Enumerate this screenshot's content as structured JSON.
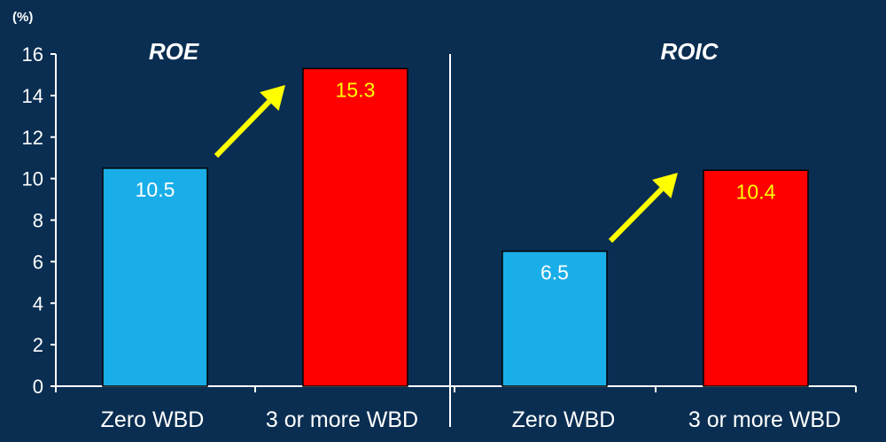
{
  "chart_data": {
    "type": "bar",
    "unit_label": "(%)",
    "ylim": [
      0,
      16
    ],
    "yticks": [
      0,
      2,
      4,
      6,
      8,
      10,
      12,
      14,
      16
    ],
    "ytick_labels": [
      "0",
      "2",
      "4",
      "6",
      "8",
      "10",
      "12",
      "14",
      "16"
    ],
    "grid": false,
    "background": "#0a2e52",
    "panels": [
      {
        "title": "ROE",
        "categories": [
          "Zero WBD",
          "3 or more WBD"
        ],
        "values": [
          10.5,
          15.3
        ],
        "value_labels": [
          "10.5",
          "15.3"
        ],
        "colors": [
          "#1aaee8",
          "#ff0000"
        ],
        "label_colors": [
          "#ffffff",
          "#ffff00"
        ],
        "arrow": {
          "from_category": "Zero WBD",
          "to_category": "3 or more WBD",
          "color": "#ffff00"
        }
      },
      {
        "title": "ROIC",
        "categories": [
          "Zero WBD",
          "3 or more WBD"
        ],
        "values": [
          6.5,
          10.4
        ],
        "value_labels": [
          "6.5",
          "10.4"
        ],
        "colors": [
          "#1aaee8",
          "#ff0000"
        ],
        "label_colors": [
          "#ffffff",
          "#ffff00"
        ],
        "arrow": {
          "from_category": "Zero WBD",
          "to_category": "3 or more WBD",
          "color": "#ffff00"
        }
      }
    ]
  }
}
